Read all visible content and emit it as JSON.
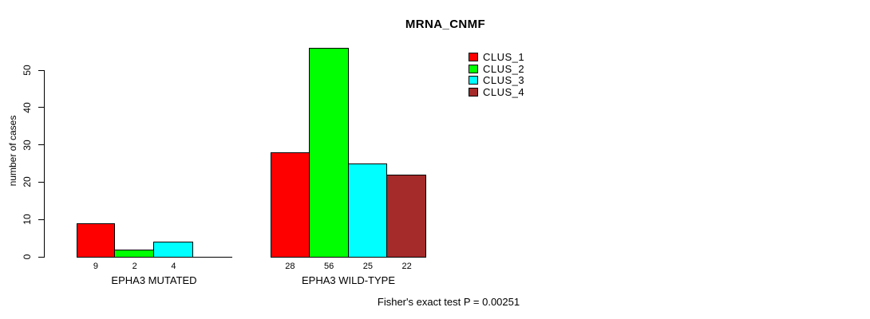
{
  "figure": {
    "title": "MRNA_CNMF",
    "ylabel": "number of cases",
    "footer": "Fisher's exact test P = 0.00251"
  },
  "chart_data": {
    "type": "bar",
    "title": "MRNA_CNMF",
    "xlabel": "",
    "ylabel": "number of cases",
    "ylim": [
      0,
      56
    ],
    "yticks": [
      0,
      10,
      20,
      30,
      40,
      50
    ],
    "grid": false,
    "legend_position": "upper-right",
    "categories": [
      "EPHA3 MUTATED",
      "EPHA3 WILD-TYPE"
    ],
    "series": [
      {
        "name": "CLUS_1",
        "color": "#ff0000",
        "values": [
          9,
          28
        ]
      },
      {
        "name": "CLUS_2",
        "color": "#00ff00",
        "values": [
          2,
          56
        ]
      },
      {
        "name": "CLUS_3",
        "color": "#00ffff",
        "values": [
          4,
          25
        ]
      },
      {
        "name": "CLUS_4",
        "color": "#a52a2a",
        "values": [
          0,
          22
        ]
      }
    ],
    "bar_value_labels_shown_only_when_nonzero": true,
    "annotation": "Fisher's exact test P = 0.00251",
    "axis_color": "#000000",
    "background_color": "#ffffff"
  }
}
